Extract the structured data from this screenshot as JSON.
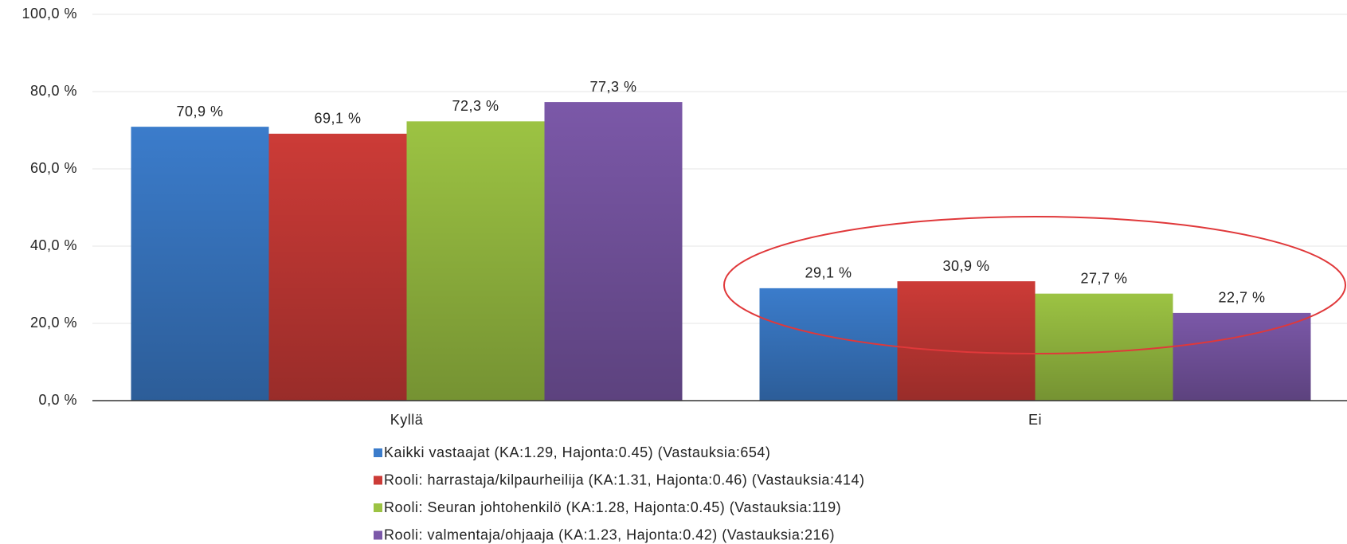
{
  "chart_data": {
    "type": "bar",
    "categories": [
      "Kyllä",
      "Ei"
    ],
    "series": [
      {
        "name": "Kaikki vastaajat (KA:1.29, Hajonta:0.45) (Vastauksia:654)",
        "color": "#3b7ccb",
        "values": [
          70.9,
          29.1
        ],
        "value_labels": [
          "70,9 %",
          "29,1 %"
        ]
      },
      {
        "name": "Rooli: harrastaja/kilpaurheilija (KA:1.31, Hajonta:0.46) (Vastauksia:414)",
        "color": "#cc3b37",
        "values": [
          69.1,
          30.9
        ],
        "value_labels": [
          "69,1 %",
          "30,9 %"
        ]
      },
      {
        "name": "Rooli: Seuran johtohenkilö (KA:1.28, Hajonta:0.45) (Vastauksia:119)",
        "color": "#9cc343",
        "values": [
          72.3,
          27.7
        ],
        "value_labels": [
          "72,3 %",
          "27,7 %"
        ]
      },
      {
        "name": "Rooli: valmentaja/ohjaaja (KA:1.23, Hajonta:0.42) (Vastauksia:216)",
        "color": "#7b58a8",
        "values": [
          77.3,
          22.7
        ],
        "value_labels": [
          "77,3 %",
          "22,7 %"
        ]
      }
    ],
    "ylim": [
      0,
      100
    ],
    "yticks": [
      {
        "value": 0,
        "label": "0,0 %"
      },
      {
        "value": 20,
        "label": "20,0 %"
      },
      {
        "value": 40,
        "label": "40,0 %"
      },
      {
        "value": 60,
        "label": "60,0 %"
      },
      {
        "value": 80,
        "label": "80,0 %"
      },
      {
        "value": 100,
        "label": "100,0 %"
      }
    ],
    "grid": true,
    "legend": "bottom"
  }
}
